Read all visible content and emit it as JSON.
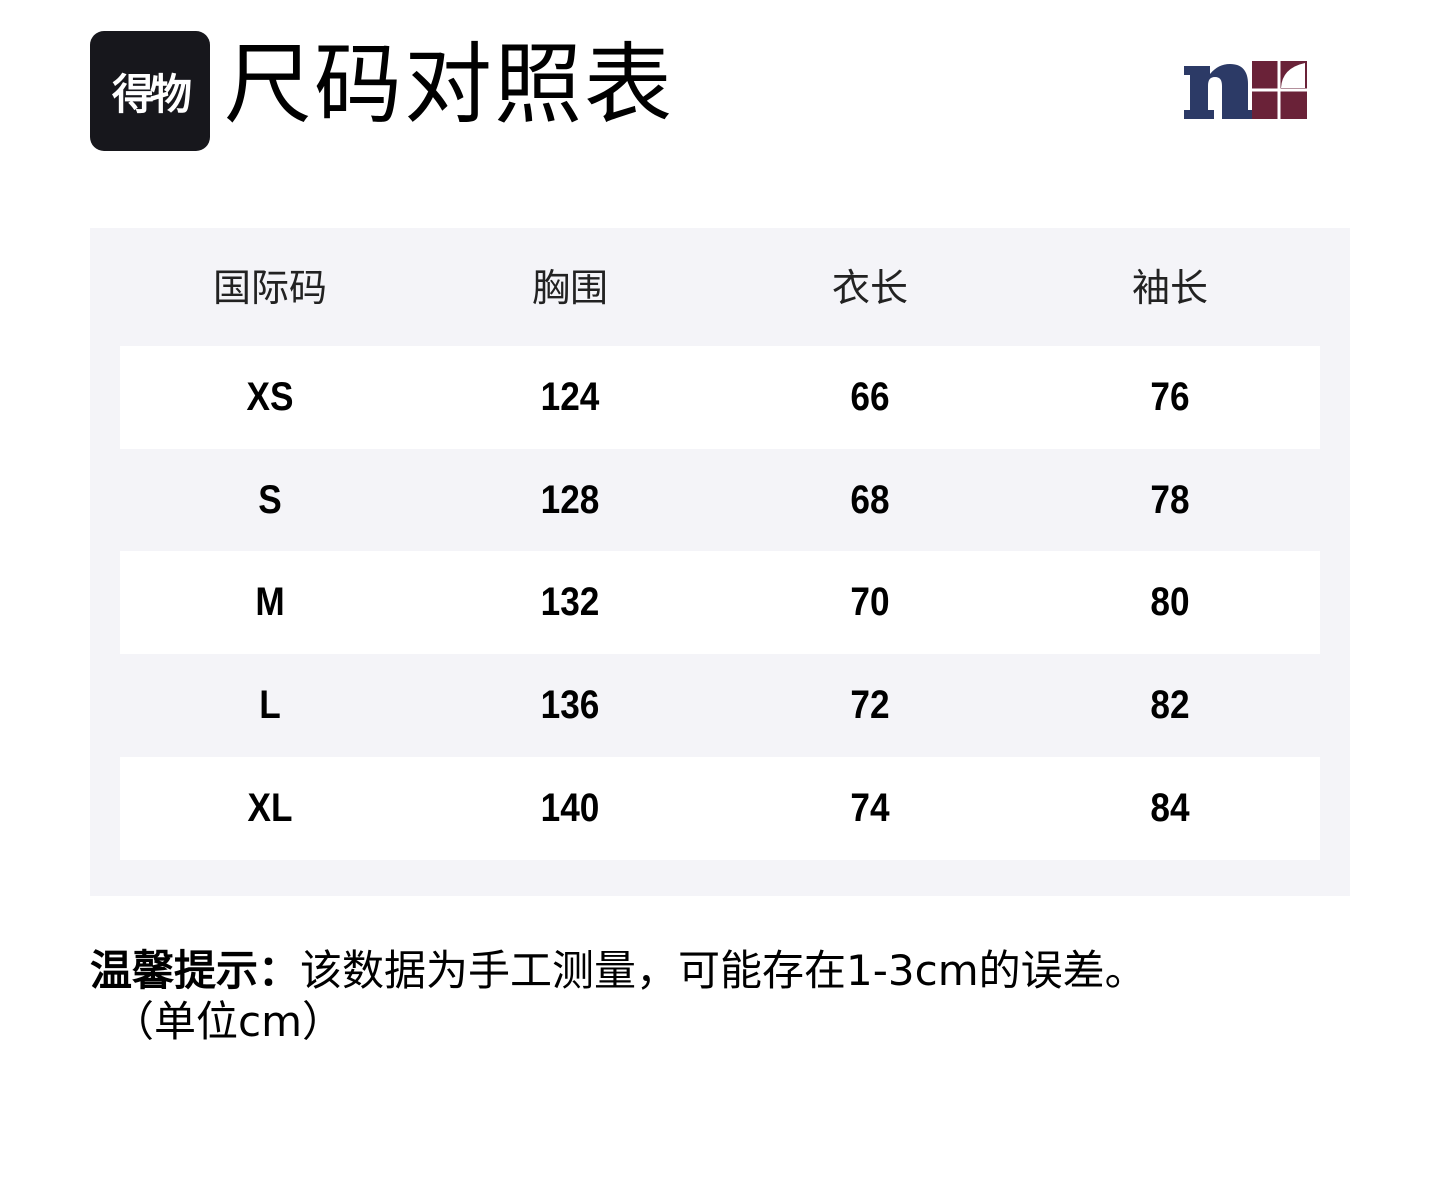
{
  "header": {
    "app_logo_text": "得物",
    "title": "尺码对照表",
    "brand_logo": "n-brand-logo",
    "colors": {
      "brand_navy": "#2c3a66",
      "brand_maroon": "#6a2238",
      "table_bg": "#f4f4f8"
    }
  },
  "table": {
    "columns": [
      "国际码",
      "胸围",
      "衣长",
      "袖长"
    ],
    "rows": [
      [
        "XS",
        "124",
        "66",
        "76"
      ],
      [
        "S",
        "128",
        "68",
        "78"
      ],
      [
        "M",
        "132",
        "70",
        "80"
      ],
      [
        "L",
        "136",
        "72",
        "82"
      ],
      [
        "XL",
        "140",
        "74",
        "84"
      ]
    ]
  },
  "note": {
    "label": "温馨提示：",
    "text": "该数据为手工测量，可能存在1-3cm的误差。",
    "unit": "（单位cm）"
  }
}
